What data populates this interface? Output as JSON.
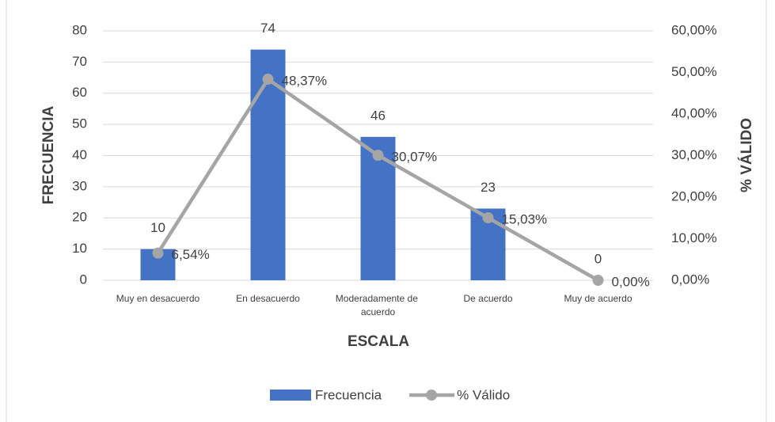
{
  "chart_data": {
    "type": "bar",
    "categories": [
      "Muy en desacuerdo",
      "En desacuerdo",
      "Moderadamente de acuerdo",
      "De acuerdo",
      "Muy de acuerdo"
    ],
    "series": [
      {
        "name": "Frecuencia",
        "type": "bar",
        "color": "#4472c4",
        "values": [
          10,
          74,
          46,
          23,
          0
        ]
      },
      {
        "name": "% Válido",
        "type": "line",
        "axis": "y2",
        "color": "#a5a5a5",
        "values": [
          6.54,
          48.37,
          30.07,
          15.03,
          0
        ],
        "value_labels": [
          "6,54%",
          "48,37%",
          "30,07%",
          "15,03%",
          "0,00%"
        ]
      }
    ],
    "xlabel": "ESCALA",
    "ylabel": "FRECUENCIA",
    "y2label": "% VÁLIDO",
    "ylim": [
      0,
      80
    ],
    "yticks": [
      0,
      10,
      20,
      30,
      40,
      50,
      60,
      70,
      80
    ],
    "y2lim": [
      0,
      60
    ],
    "y2ticks": [
      {
        "value": 0,
        "label": "0,00%"
      },
      {
        "value": 10,
        "label": "10,00%"
      },
      {
        "value": 20,
        "label": "20,00%"
      },
      {
        "value": 30,
        "label": "30,00%"
      },
      {
        "value": 40,
        "label": "40,00%"
      },
      {
        "value": 50,
        "label": "50,00%"
      },
      {
        "value": 60,
        "label": "60,00%"
      }
    ],
    "grid": true,
    "legend": "bottom"
  }
}
